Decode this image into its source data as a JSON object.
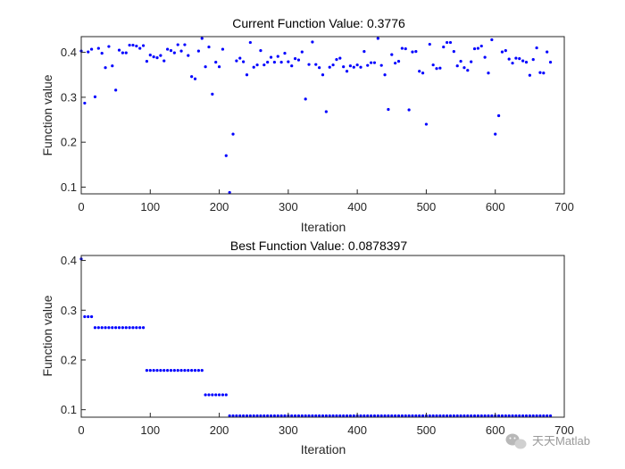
{
  "chart_data": [
    {
      "type": "scatter",
      "title": "Current Function Value: 0.3776",
      "xlabel": "Iteration",
      "ylabel": "Function value",
      "xlim": [
        0,
        700
      ],
      "ylim": [
        0.085,
        0.435
      ],
      "xticks": [
        0,
        100,
        200,
        300,
        400,
        500,
        600,
        700
      ],
      "yticks": [
        0.1,
        0.2,
        0.3,
        0.4
      ],
      "grid": false,
      "marker_color": "#0000ff",
      "series": [
        {
          "points": [
            [
              0,
              0.403
            ],
            [
              5,
              0.287
            ],
            [
              10,
              0.401
            ],
            [
              15,
              0.407
            ],
            [
              20,
              0.301
            ],
            [
              25,
              0.409
            ],
            [
              30,
              0.398
            ],
            [
              35,
              0.366
            ],
            [
              40,
              0.413
            ],
            [
              45,
              0.37
            ],
            [
              50,
              0.316
            ],
            [
              55,
              0.405
            ],
            [
              60,
              0.399
            ],
            [
              65,
              0.399
            ],
            [
              70,
              0.416
            ],
            [
              75,
              0.416
            ],
            [
              80,
              0.414
            ],
            [
              85,
              0.409
            ],
            [
              90,
              0.415
            ],
            [
              95,
              0.38
            ],
            [
              100,
              0.394
            ],
            [
              105,
              0.39
            ],
            [
              110,
              0.388
            ],
            [
              115,
              0.393
            ],
            [
              120,
              0.381
            ],
            [
              125,
              0.407
            ],
            [
              130,
              0.404
            ],
            [
              135,
              0.399
            ],
            [
              140,
              0.417
            ],
            [
              145,
              0.403
            ],
            [
              150,
              0.417
            ],
            [
              155,
              0.393
            ],
            [
              160,
              0.346
            ],
            [
              165,
              0.341
            ],
            [
              170,
              0.403
            ],
            [
              175,
              0.431
            ],
            [
              180,
              0.368
            ],
            [
              185,
              0.412
            ],
            [
              190,
              0.307
            ],
            [
              195,
              0.378
            ],
            [
              200,
              0.368
            ],
            [
              205,
              0.407
            ],
            [
              210,
              0.17
            ],
            [
              215,
              0.088
            ],
            [
              220,
              0.218
            ],
            [
              225,
              0.381
            ],
            [
              230,
              0.387
            ],
            [
              235,
              0.379
            ],
            [
              240,
              0.35
            ],
            [
              245,
              0.422
            ],
            [
              250,
              0.367
            ],
            [
              255,
              0.372
            ],
            [
              260,
              0.404
            ],
            [
              265,
              0.372
            ],
            [
              270,
              0.378
            ],
            [
              275,
              0.389
            ],
            [
              280,
              0.378
            ],
            [
              285,
              0.391
            ],
            [
              290,
              0.378
            ],
            [
              295,
              0.398
            ],
            [
              300,
              0.379
            ],
            [
              305,
              0.37
            ],
            [
              310,
              0.386
            ],
            [
              315,
              0.383
            ],
            [
              320,
              0.401
            ],
            [
              325,
              0.296
            ],
            [
              330,
              0.373
            ],
            [
              335,
              0.423
            ],
            [
              340,
              0.373
            ],
            [
              345,
              0.366
            ],
            [
              350,
              0.35
            ],
            [
              355,
              0.268
            ],
            [
              360,
              0.367
            ],
            [
              365,
              0.372
            ],
            [
              370,
              0.384
            ],
            [
              375,
              0.387
            ],
            [
              380,
              0.368
            ],
            [
              385,
              0.358
            ],
            [
              390,
              0.37
            ],
            [
              395,
              0.367
            ],
            [
              400,
              0.372
            ],
            [
              405,
              0.367
            ],
            [
              410,
              0.402
            ],
            [
              415,
              0.371
            ],
            [
              420,
              0.377
            ],
            [
              425,
              0.377
            ],
            [
              430,
              0.431
            ],
            [
              435,
              0.371
            ],
            [
              440,
              0.35
            ],
            [
              445,
              0.273
            ],
            [
              450,
              0.395
            ],
            [
              455,
              0.376
            ],
            [
              460,
              0.38
            ],
            [
              465,
              0.409
            ],
            [
              470,
              0.408
            ],
            [
              475,
              0.272
            ],
            [
              480,
              0.401
            ],
            [
              485,
              0.402
            ],
            [
              490,
              0.358
            ],
            [
              495,
              0.354
            ],
            [
              500,
              0.24
            ],
            [
              505,
              0.418
            ],
            [
              510,
              0.372
            ],
            [
              515,
              0.364
            ],
            [
              520,
              0.365
            ],
            [
              525,
              0.412
            ],
            [
              530,
              0.422
            ],
            [
              535,
              0.422
            ],
            [
              540,
              0.402
            ],
            [
              545,
              0.37
            ],
            [
              550,
              0.38
            ],
            [
              555,
              0.366
            ],
            [
              560,
              0.36
            ],
            [
              565,
              0.379
            ],
            [
              570,
              0.408
            ],
            [
              575,
              0.409
            ],
            [
              580,
              0.414
            ],
            [
              585,
              0.389
            ],
            [
              590,
              0.354
            ],
            [
              595,
              0.428
            ],
            [
              600,
              0.218
            ],
            [
              605,
              0.259
            ],
            [
              610,
              0.401
            ],
            [
              615,
              0.404
            ],
            [
              620,
              0.385
            ],
            [
              625,
              0.376
            ],
            [
              630,
              0.387
            ],
            [
              635,
              0.386
            ],
            [
              640,
              0.381
            ],
            [
              645,
              0.378
            ],
            [
              650,
              0.349
            ],
            [
              655,
              0.384
            ],
            [
              660,
              0.41
            ],
            [
              665,
              0.355
            ],
            [
              670,
              0.354
            ],
            [
              675,
              0.401
            ],
            [
              680,
              0.378
            ]
          ]
        }
      ]
    },
    {
      "type": "scatter",
      "title": "Best Function Value: 0.0878397",
      "xlabel": "Iteration",
      "ylabel": "Function value",
      "xlim": [
        0,
        700
      ],
      "ylim": [
        0.085,
        0.41
      ],
      "xticks": [
        0,
        100,
        200,
        300,
        400,
        500,
        600,
        700
      ],
      "yticks": [
        0.1,
        0.2,
        0.3,
        0.4
      ],
      "grid": false,
      "marker_color": "#0000ff",
      "series": [
        {
          "steps": [
            {
              "from": 0,
              "to": 0,
              "value": 0.403
            },
            {
              "from": 5,
              "to": 15,
              "value": 0.287
            },
            {
              "from": 20,
              "to": 90,
              "value": 0.265
            },
            {
              "from": 95,
              "to": 175,
              "value": 0.179
            },
            {
              "from": 180,
              "to": 210,
              "value": 0.13
            },
            {
              "from": 215,
              "to": 680,
              "value": 0.0878397
            }
          ],
          "step_interval": 5
        }
      ]
    }
  ],
  "watermark": {
    "text": "天天Matlab"
  }
}
